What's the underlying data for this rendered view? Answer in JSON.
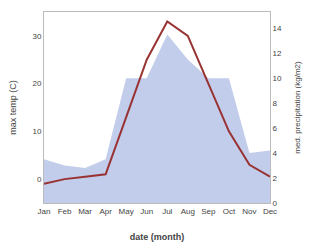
{
  "chart_data": {
    "type": "line",
    "xlabel": "date (month)",
    "ylabel": "max temp (C)",
    "y2label": "med. precipitation (kg/m2)",
    "categories": [
      "Jan",
      "Feb",
      "Mar",
      "Apr",
      "May",
      "Jun",
      "Jul",
      "Aug",
      "Sep",
      "Oct",
      "Nov",
      "Dec"
    ],
    "series": [
      {
        "type": "area",
        "axis": "y2",
        "color": "#99aadd",
        "values": [
          3.5,
          3.0,
          2.8,
          3.5,
          10,
          10,
          13.5,
          11.5,
          10,
          10,
          4,
          4.2
        ]
      },
      {
        "type": "line",
        "color": "#993333",
        "values": [
          -1,
          0,
          0.5,
          1.0,
          13,
          25,
          33,
          30,
          20,
          10,
          3,
          0.5
        ]
      }
    ],
    "ylim": [
      -5,
      35
    ],
    "yticks": [
      0,
      10,
      20,
      30
    ],
    "y2lim": [
      0,
      15.3
    ],
    "y2ticks": [
      0,
      2,
      4,
      6,
      8,
      10,
      12,
      14
    ],
    "grid": false
  }
}
